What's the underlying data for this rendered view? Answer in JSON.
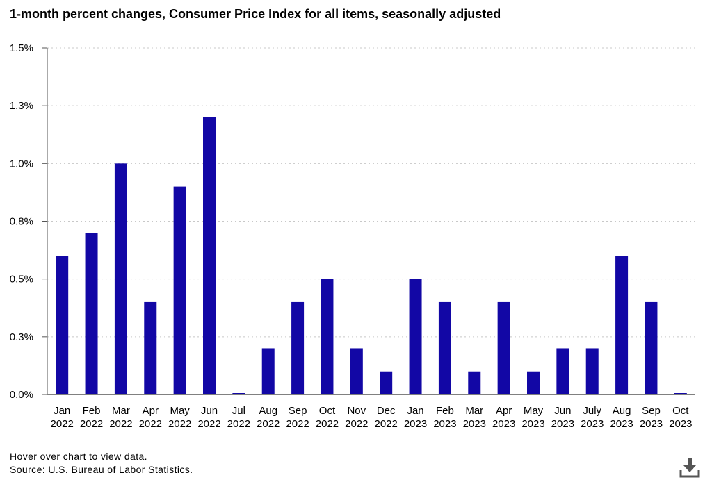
{
  "header": {
    "title": "1-month percent changes, Consumer Price Index for all items, seasonally adjusted"
  },
  "footer": {
    "hover_note": "Hover over chart to view data.",
    "source": "Source: U.S. Bureau of Labor Statistics."
  },
  "icons": {
    "download": "download-icon"
  },
  "colors": {
    "bar": "#1207a5",
    "axis": "#555555",
    "grid": "#c8c8c8"
  },
  "chart_data": {
    "type": "bar",
    "title": "1-month percent changes, Consumer Price Index for all items, seasonally adjusted",
    "xlabel": "",
    "ylabel": "",
    "ylim": [
      0,
      1.5
    ],
    "yticks": [
      {
        "value": 0.0,
        "label": "0.0%"
      },
      {
        "value": 0.25,
        "label": "0.3%"
      },
      {
        "value": 0.5,
        "label": "0.5%"
      },
      {
        "value": 0.75,
        "label": "0.8%"
      },
      {
        "value": 1.0,
        "label": "1.0%"
      },
      {
        "value": 1.25,
        "label": "1.3%"
      },
      {
        "value": 1.5,
        "label": "1.5%"
      }
    ],
    "grid": true,
    "categories": [
      [
        "Jan",
        "2022"
      ],
      [
        "Feb",
        "2022"
      ],
      [
        "Mar",
        "2022"
      ],
      [
        "Apr",
        "2022"
      ],
      [
        "May",
        "2022"
      ],
      [
        "Jun",
        "2022"
      ],
      [
        "Jul",
        "2022"
      ],
      [
        "Aug",
        "2022"
      ],
      [
        "Sep",
        "2022"
      ],
      [
        "Oct",
        "2022"
      ],
      [
        "Nov",
        "2022"
      ],
      [
        "Dec",
        "2022"
      ],
      [
        "Jan",
        "2023"
      ],
      [
        "Feb",
        "2023"
      ],
      [
        "Mar",
        "2023"
      ],
      [
        "Apr",
        "2023"
      ],
      [
        "May",
        "2023"
      ],
      [
        "Jun",
        "2023"
      ],
      [
        "July",
        "2023"
      ],
      [
        "Aug",
        "2023"
      ],
      [
        "Sep",
        "2023"
      ],
      [
        "Oct",
        "2023"
      ]
    ],
    "values": [
      0.6,
      0.7,
      1.0,
      0.4,
      0.9,
      1.2,
      0.0,
      0.2,
      0.4,
      0.5,
      0.2,
      0.1,
      0.5,
      0.4,
      0.1,
      0.4,
      0.1,
      0.2,
      0.2,
      0.6,
      0.4,
      0.0
    ]
  }
}
